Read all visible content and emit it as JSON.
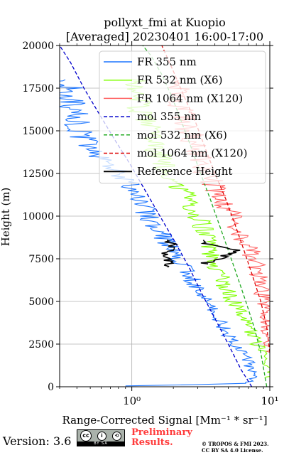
{
  "chart_data": {
    "type": "line",
    "title": "pollyxt_fmi at Kuopio",
    "subtitle": "[Averaged] 20230401 16:00-17:00",
    "xlabel": "Range-Corrected Signal [Mm⁻¹ * sr⁻¹]",
    "ylabel": "Height (m)",
    "x_scale": "log",
    "xlim": [
      0.3,
      10
    ],
    "ylim": [
      0,
      20000
    ],
    "x_ticks": [
      1,
      10
    ],
    "x_tick_labels": [
      "10⁰",
      "10¹"
    ],
    "y_ticks": [
      0,
      2500,
      5000,
      7500,
      10000,
      12500,
      15000,
      17500,
      20000
    ],
    "y_tick_labels": [
      "0",
      "2500",
      "5000",
      "7500",
      "10000",
      "12500",
      "15000",
      "17500",
      "20000"
    ],
    "grid": true,
    "legend_position": "top-right",
    "series": [
      {
        "name": "FR 355 nm",
        "color": "#1f77ff",
        "style": "solid",
        "x": [
          1.0,
          7.0,
          7.6,
          7.0,
          5.5,
          4.6,
          3.8,
          3.1,
          2.6,
          2.2,
          1.8,
          1.45,
          1.2,
          1.0,
          0.8,
          0.6,
          0.45,
          0.38,
          0.33
        ],
        "y": [
          50,
          200,
          600,
          1500,
          2500,
          3500,
          4500,
          5500,
          6500,
          7500,
          8500,
          9500,
          10500,
          11500,
          12500,
          13500,
          14500,
          16000,
          18000
        ]
      },
      {
        "name": "FR 532 nm (X6)",
        "color": "#7fff00",
        "style": "solid",
        "x": [
          10.0,
          9.2,
          8.0,
          7.0,
          6.0,
          5.0,
          4.4,
          3.8,
          3.6,
          3.2,
          2.8,
          2.3,
          1.9,
          1.6,
          1.4,
          1.2,
          1.0
        ],
        "y": [
          500,
          1500,
          2500,
          3500,
          4500,
          5500,
          6500,
          7500,
          8500,
          9500,
          10500,
          11500,
          12500,
          13500,
          14500,
          16000,
          18000
        ]
      },
      {
        "name": "FR 1064 nm (X120)",
        "color": "#ff6464",
        "style": "solid",
        "x": [
          10.0,
          9.8,
          9.5,
          9.0,
          8.6,
          8.0,
          7.2,
          6.0,
          5.3,
          4.5,
          3.8,
          3.2,
          2.8,
          2.4,
          2.1
        ],
        "y": [
          2000,
          3000,
          4000,
          5000,
          6000,
          7000,
          8000,
          9000,
          10000,
          11000,
          12000,
          13000,
          14000,
          16000,
          18000
        ]
      },
      {
        "name": "mol 355 nm",
        "color": "#0000cc",
        "style": "dashed",
        "x": [
          7.4,
          6.2,
          5.0,
          4.0,
          3.2,
          2.6,
          2.05,
          1.6,
          1.25,
          0.98,
          0.75,
          0.58,
          0.45,
          0.36,
          0.3
        ],
        "y": [
          0,
          1000,
          2500,
          4000,
          5500,
          7000,
          8500,
          10000,
          11500,
          13000,
          14500,
          16000,
          17500,
          19000,
          20000
        ]
      },
      {
        "name": "mol 532 nm (X6)",
        "color": "#22aa22",
        "style": "dashed",
        "x": [
          9.5,
          8.6,
          7.7,
          6.7,
          5.8,
          5.0,
          4.3,
          3.7,
          3.15,
          2.7,
          2.3,
          1.95,
          1.65,
          1.38,
          1.2
        ],
        "y": [
          0,
          2000,
          3500,
          5000,
          6500,
          8000,
          9500,
          11000,
          12500,
          14000,
          15500,
          17000,
          18300,
          19400,
          20000
        ]
      },
      {
        "name": "mol 1064 nm (X120)",
        "color": "#dd0000",
        "style": "dashed",
        "x": [
          10.0,
          9.5,
          8.6,
          7.5,
          6.5,
          5.6,
          4.8,
          4.0,
          3.4,
          2.9,
          2.4,
          2.0,
          1.65
        ],
        "y": [
          2000,
          3500,
          5000,
          6500,
          8000,
          9500,
          11000,
          12500,
          14000,
          15500,
          17000,
          18500,
          20000
        ]
      },
      {
        "name": "Reference Height",
        "color": "#000000",
        "style": "solid",
        "note": "",
        "x": [
          1.7,
          1.85,
          1.65,
          1.9,
          2.05,
          1.8
        ],
        "y": [
          7000,
          7300,
          7700,
          8000,
          8300,
          8600
        ],
        "x2": [
          3.3,
          4.2,
          5.2,
          6.2,
          4.6,
          3.6,
          3.3
        ],
        "y2": [
          7200,
          7500,
          7800,
          8000,
          8200,
          8400,
          8600
        ]
      }
    ]
  },
  "footer": {
    "version": "Version: 3.6",
    "cc_label": "BY SA",
    "preliminary_line1": "Preliminary",
    "preliminary_line2": "Results.",
    "copyright_line1": "© TROPOS & FMI 2023.",
    "copyright_line2": "CC BY SA 4.0 License."
  }
}
